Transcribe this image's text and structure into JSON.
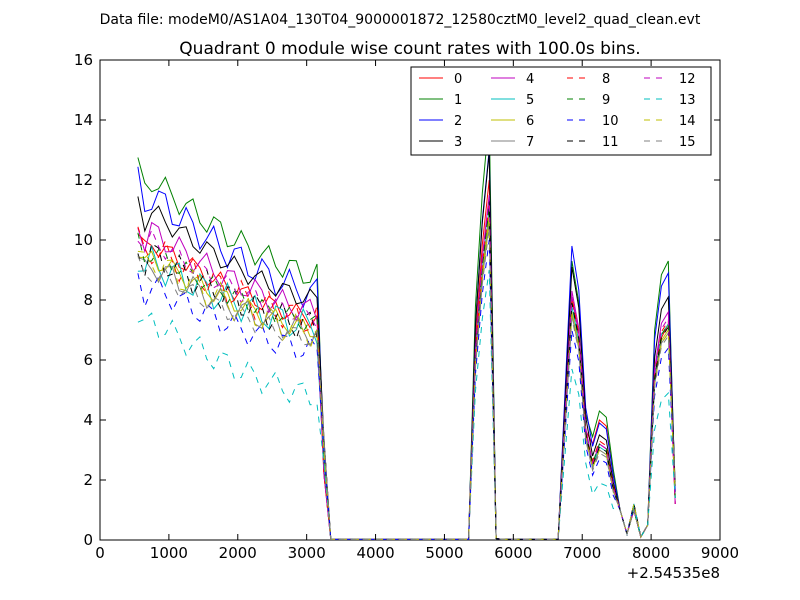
{
  "chart_data": {
    "type": "line",
    "suptitle": "Data file: modeM0/AS1A04_130T04_9000001872_12580cztM0_level2_quad_clean.evt",
    "title": "Quadrant 0 module wise count rates with 100.0s bins.",
    "xlabel": "",
    "ylabel": "",
    "x_offset_label": "+2.54535e8",
    "xlim": [
      0,
      9000
    ],
    "ylim": [
      0,
      16
    ],
    "x_ticks": [
      0,
      1000,
      2000,
      3000,
      4000,
      5000,
      6000,
      7000,
      8000,
      9000
    ],
    "y_ticks": [
      0,
      2,
      4,
      6,
      8,
      10,
      12,
      14,
      16
    ],
    "grid": false,
    "legend": {
      "placement": "top-right",
      "columns": 4
    },
    "x": [
      550,
      650,
      750,
      850,
      950,
      1050,
      1150,
      1250,
      1350,
      1450,
      1550,
      1650,
      1750,
      1850,
      1950,
      2050,
      2150,
      2250,
      2350,
      2450,
      2550,
      2650,
      2750,
      2850,
      2950,
      3050,
      3150,
      3250,
      3350,
      3450,
      3550,
      3650,
      3750,
      3850,
      3950,
      4050,
      4150,
      4250,
      4350,
      4450,
      4550,
      4650,
      4750,
      4850,
      4950,
      5050,
      5150,
      5250,
      5350,
      5450,
      5550,
      5650,
      5750,
      5850,
      5950,
      6050,
      6150,
      6250,
      6350,
      6450,
      6550,
      6650,
      6750,
      6850,
      6950,
      7050,
      7150,
      7250,
      7350,
      7450,
      7550,
      7650,
      7750,
      7850,
      7950,
      8050,
      8150,
      8250,
      8350
    ],
    "series": [
      {
        "name": "0",
        "color": "#ff0000",
        "style": "solid",
        "base": 10.2,
        "low": 7.4,
        "peak": 12.0,
        "pa": 8.1,
        "pb": 4.0,
        "pc": 7.1,
        "pd": 7.2
      },
      {
        "name": "1",
        "color": "#008000",
        "style": "solid",
        "base": 12.4,
        "low": 8.8,
        "peak": 14.1,
        "pa": 9.3,
        "pb": 4.3,
        "pc": 9.3,
        "pd": 9.3
      },
      {
        "name": "2",
        "color": "#0000ff",
        "style": "solid",
        "base": 11.9,
        "low": 8.2,
        "peak": 13.0,
        "pa": 9.8,
        "pb": 3.9,
        "pc": 8.9,
        "pd": 8.9
      },
      {
        "name": "3",
        "color": "#000000",
        "style": "solid",
        "base": 11.3,
        "low": 8.0,
        "peak": 12.9,
        "pa": 9.1,
        "pb": 3.5,
        "pc": 8.1,
        "pd": 8.1
      },
      {
        "name": "4",
        "color": "#bf00bf",
        "style": "solid",
        "base": 10.6,
        "low": 7.6,
        "peak": 11.5,
        "pa": 8.3,
        "pb": 3.2,
        "pc": 7.6,
        "pd": 7.6
      },
      {
        "name": "5",
        "color": "#00bfbf",
        "style": "solid",
        "base": 9.5,
        "low": 7.1,
        "peak": 11.0,
        "pa": 7.8,
        "pb": 3.1,
        "pc": 7.2,
        "pd": 7.2
      },
      {
        "name": "6",
        "color": "#bfbf00",
        "style": "solid",
        "base": 9.7,
        "low": 7.0,
        "peak": 10.8,
        "pa": 7.6,
        "pb": 3.0,
        "pc": 7.0,
        "pd": 7.0
      },
      {
        "name": "7",
        "color": "#808080",
        "style": "solid",
        "base": 9.4,
        "low": 6.9,
        "peak": 10.6,
        "pa": 7.5,
        "pb": 3.0,
        "pc": 6.9,
        "pd": 6.9
      },
      {
        "name": "8",
        "color": "#ff0000",
        "style": "dashed",
        "base": 10.0,
        "low": 7.3,
        "peak": 11.2,
        "pa": 8.0,
        "pb": 3.3,
        "pc": 7.3,
        "pd": 7.3
      },
      {
        "name": "9",
        "color": "#008000",
        "style": "dashed",
        "base": 9.9,
        "low": 7.2,
        "peak": 11.1,
        "pa": 7.9,
        "pb": 3.2,
        "pc": 7.2,
        "pd": 7.2
      },
      {
        "name": "10",
        "color": "#0000ff",
        "style": "dashed",
        "base": 8.7,
        "low": 6.3,
        "peak": 10.0,
        "pa": 7.0,
        "pb": 2.7,
        "pc": 6.4,
        "pd": 6.4
      },
      {
        "name": "11",
        "color": "#000000",
        "style": "dashed",
        "base": 9.8,
        "low": 7.1,
        "peak": 11.3,
        "pa": 7.9,
        "pb": 3.1,
        "pc": 7.1,
        "pd": 7.1
      },
      {
        "name": "12",
        "color": "#bf00bf",
        "style": "dashed",
        "base": 10.3,
        "low": 7.4,
        "peak": 11.4,
        "pa": 8.1,
        "pb": 3.2,
        "pc": 7.4,
        "pd": 7.4
      },
      {
        "name": "13",
        "color": "#00bfbf",
        "style": "dashed",
        "base": 7.6,
        "low": 4.8,
        "peak": 9.0,
        "pa": 5.7,
        "pb": 1.9,
        "pc": 4.9,
        "pd": 4.9
      },
      {
        "name": "14",
        "color": "#bfbf00",
        "style": "dashed",
        "base": 9.6,
        "low": 6.9,
        "peak": 10.6,
        "pa": 7.6,
        "pb": 3.0,
        "pc": 6.9,
        "pd": 6.9
      },
      {
        "name": "15",
        "color": "#808080",
        "style": "dashed",
        "base": 9.2,
        "low": 6.7,
        "peak": 10.4,
        "pa": 7.4,
        "pb": 2.9,
        "pc": 6.8,
        "pd": 6.8
      }
    ]
  }
}
